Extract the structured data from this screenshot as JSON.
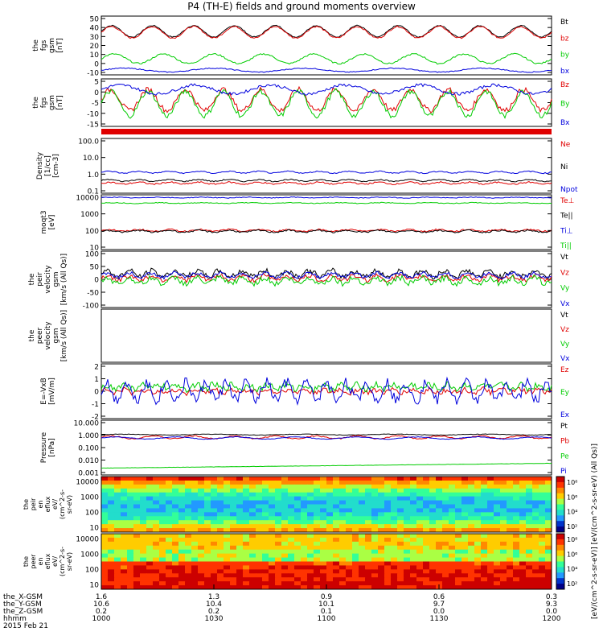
{
  "title": "P4 (TH-E) fields and ground moments overview",
  "colors": {
    "black": "#000000",
    "red": "#e00000",
    "green": "#00cc00",
    "blue": "#0000dd"
  },
  "chart_data": {
    "type": "line",
    "x_axis": {
      "label": "hhmm",
      "ticks": [
        "1000",
        "1030",
        "1100",
        "1130",
        "1200"
      ],
      "rows": [
        {
          "label": "the_X-GSM",
          "values": [
            "1.6",
            "1.3",
            "0.9",
            "0.6",
            "0.3"
          ]
        },
        {
          "label": "the_Y-GSM",
          "values": [
            "10.6",
            "10.4",
            "10.1",
            "9.7",
            "9.3"
          ]
        },
        {
          "label": "the_Z-GSM",
          "values": [
            "0.2",
            "0.2",
            "0.1",
            "0.0",
            "0.0"
          ]
        }
      ],
      "date": "2015 Feb 21"
    },
    "panels": [
      {
        "id": "fgs_gsm",
        "ylabel": [
          "the",
          "fgs",
          "gsm",
          "[nT]"
        ],
        "ticks": [
          "50",
          "40",
          "30",
          "20",
          "10",
          "0",
          "-10"
        ],
        "ylim": [
          -12,
          50
        ],
        "series": [
          {
            "name": "Bt",
            "color": "black",
            "base": 34,
            "amp": 6,
            "freq": 22,
            "noise": 0.6
          },
          {
            "name": "bz",
            "color": "red",
            "base": 33,
            "amp": 6,
            "freq": 22,
            "noise": 0.8
          },
          {
            "name": "by",
            "color": "green",
            "base": 5,
            "amp": 5,
            "freq": 18,
            "noise": 0.8
          },
          {
            "name": "bx",
            "color": "blue",
            "base": -7,
            "amp": 2,
            "freq": 10,
            "noise": 0.5
          }
        ]
      },
      {
        "id": "fgs_gsm2",
        "ylabel": [
          "the",
          "fgs",
          "gsm",
          "[nT]"
        ],
        "ticks": [
          "5",
          "0",
          "-5",
          "-10",
          "-15"
        ],
        "ylim": [
          -18,
          9
        ],
        "series": [
          {
            "name": "Bz",
            "color": "red",
            "base": -3,
            "amp": 6,
            "freq": 24,
            "noise": 1.5
          },
          {
            "name": "By",
            "color": "green",
            "base": -5,
            "amp": 7,
            "freq": 24,
            "noise": 1.5
          },
          {
            "name": "Bx",
            "color": "blue",
            "base": 3,
            "amp": 2.5,
            "freq": 12,
            "noise": 0.8
          }
        ]
      },
      {
        "id": "density",
        "ylabel": [
          "Density",
          "[1/cc]",
          "[cm-3]"
        ],
        "ticks": [
          "100.0",
          "10.0",
          "1.0",
          "0.1"
        ],
        "ylim": [
          -1,
          2
        ],
        "log": true,
        "series": [
          {
            "name": "Ne",
            "color": "red",
            "base": -0.45,
            "amp": 0.05,
            "freq": 30,
            "noise": 0.04
          },
          {
            "name": "Ni",
            "color": "black",
            "base": -0.3,
            "amp": 0.05,
            "freq": 30,
            "noise": 0.03
          },
          {
            "name": "Npot",
            "color": "blue",
            "base": 0.15,
            "amp": 0.05,
            "freq": 30,
            "noise": 0.03
          }
        ]
      },
      {
        "id": "temp",
        "ylabel": [
          "moqt3",
          "[eV]"
        ],
        "ticks": [
          "10000",
          "1000",
          "100",
          "10"
        ],
        "ylim": [
          1,
          4
        ],
        "log": true,
        "series": [
          {
            "name": "Te⊥",
            "color": "red",
            "base": 2.05,
            "amp": 0.05,
            "freq": 30,
            "noise": 0.04
          },
          {
            "name": "Te||",
            "color": "black",
            "base": 2.0,
            "amp": 0.05,
            "freq": 30,
            "noise": 0.04
          },
          {
            "name": "Ti⊥",
            "color": "blue",
            "base": 3.85,
            "amp": 0.02,
            "freq": 20,
            "noise": 0.02
          },
          {
            "name": "Ti||",
            "color": "green",
            "base": 3.55,
            "amp": 0.02,
            "freq": 20,
            "noise": 0.02
          }
        ]
      },
      {
        "id": "velocity",
        "ylabel": [
          "the",
          "peir",
          "velocity",
          "gsm",
          "[km/s (All Qs)]"
        ],
        "ticks": [
          "100",
          "50",
          "0",
          "-50",
          "-100"
        ],
        "ylim": [
          -100,
          100
        ],
        "series": [
          {
            "name": "Vt",
            "color": "black",
            "base": 20,
            "amp": 10,
            "freq": 40,
            "noise": 10
          },
          {
            "name": "Vz",
            "color": "red",
            "base": 5,
            "amp": 8,
            "freq": 40,
            "noise": 8
          },
          {
            "name": "Vy",
            "color": "green",
            "base": -5,
            "amp": 10,
            "freq": 40,
            "noise": 10
          },
          {
            "name": "Vx",
            "color": "blue",
            "base": 15,
            "amp": 8,
            "freq": 40,
            "noise": 6
          }
        ]
      },
      {
        "id": "peer_vel",
        "ylabel": [
          "the",
          "peer",
          "velocity",
          "gsm",
          "[km/s (All Qs)]"
        ],
        "ticks": [],
        "ylim": [
          -100,
          100
        ],
        "series": [
          {
            "name": "Vt",
            "color": "black",
            "empty": true
          },
          {
            "name": "Vz",
            "color": "red",
            "empty": true
          },
          {
            "name": "Vy",
            "color": "green",
            "empty": true
          },
          {
            "name": "Vx",
            "color": "blue",
            "empty": true
          }
        ]
      },
      {
        "id": "efield",
        "ylabel": [
          "E=-VxB",
          "[mV/m]"
        ],
        "ticks": [
          "2",
          "1",
          "0",
          "-1",
          "-2"
        ],
        "ylim": [
          -2.5,
          2.5
        ],
        "series": [
          {
            "name": "Ez",
            "color": "red",
            "base": 0,
            "amp": 0.15,
            "freq": 50,
            "noise": 0.25
          },
          {
            "name": "Ey",
            "color": "green",
            "base": 0.4,
            "amp": 0.2,
            "freq": 50,
            "noise": 0.3
          },
          {
            "name": "Ex",
            "color": "blue",
            "base": 0,
            "amp": 0.8,
            "freq": 45,
            "noise": 0.5
          }
        ]
      },
      {
        "id": "pressure",
        "ylabel": [
          "Pressure",
          "[nPa]"
        ],
        "ticks": [
          "10.000",
          "1.000",
          "0.100",
          "0.010",
          "0.001"
        ],
        "ylim": [
          -3,
          1
        ],
        "log": true,
        "series": [
          {
            "name": "Pt",
            "color": "black",
            "base": -0.05,
            "amp": 0.03,
            "freq": 10,
            "noise": 0.02
          },
          {
            "name": "Pb",
            "color": "red",
            "base": -0.25,
            "amp": 0.1,
            "freq": 22,
            "noise": 0.04
          },
          {
            "name": "Pe",
            "color": "green",
            "base": -2.5,
            "amp": 0.0,
            "freq": 1,
            "noise": 0.01,
            "trend": 0.35
          },
          {
            "name": "Pi",
            "color": "blue",
            "base": -0.3,
            "amp": 0.08,
            "freq": 15,
            "noise": 0.02
          }
        ]
      }
    ],
    "spectrograms": [
      {
        "id": "peir_eflux",
        "ylabel": [
          "the",
          "peir",
          "en",
          "eflux",
          "eV/",
          "(cm^2-s-",
          "sr-eV)"
        ],
        "ticks": [
          "10000",
          "1000",
          "100",
          "10"
        ],
        "colorbar_ticks": [
          "10⁸",
          "10⁶",
          "10⁴",
          "10²"
        ]
      },
      {
        "id": "peer_eflux",
        "ylabel": [
          "the",
          "peer",
          "en",
          "eflux",
          "eV/",
          "(cm^2-s-",
          "sr-eV)"
        ],
        "ticks": [
          "10000",
          "1000",
          "100",
          "10"
        ],
        "colorbar_ticks": [
          "10⁸",
          "10⁶",
          "10⁴",
          "10²"
        ]
      }
    ],
    "colorbar_label": "[eV/(cm^2-s-sr-eV)] [eV/(cm^2-s-sr-eV) (All Qs)]"
  }
}
